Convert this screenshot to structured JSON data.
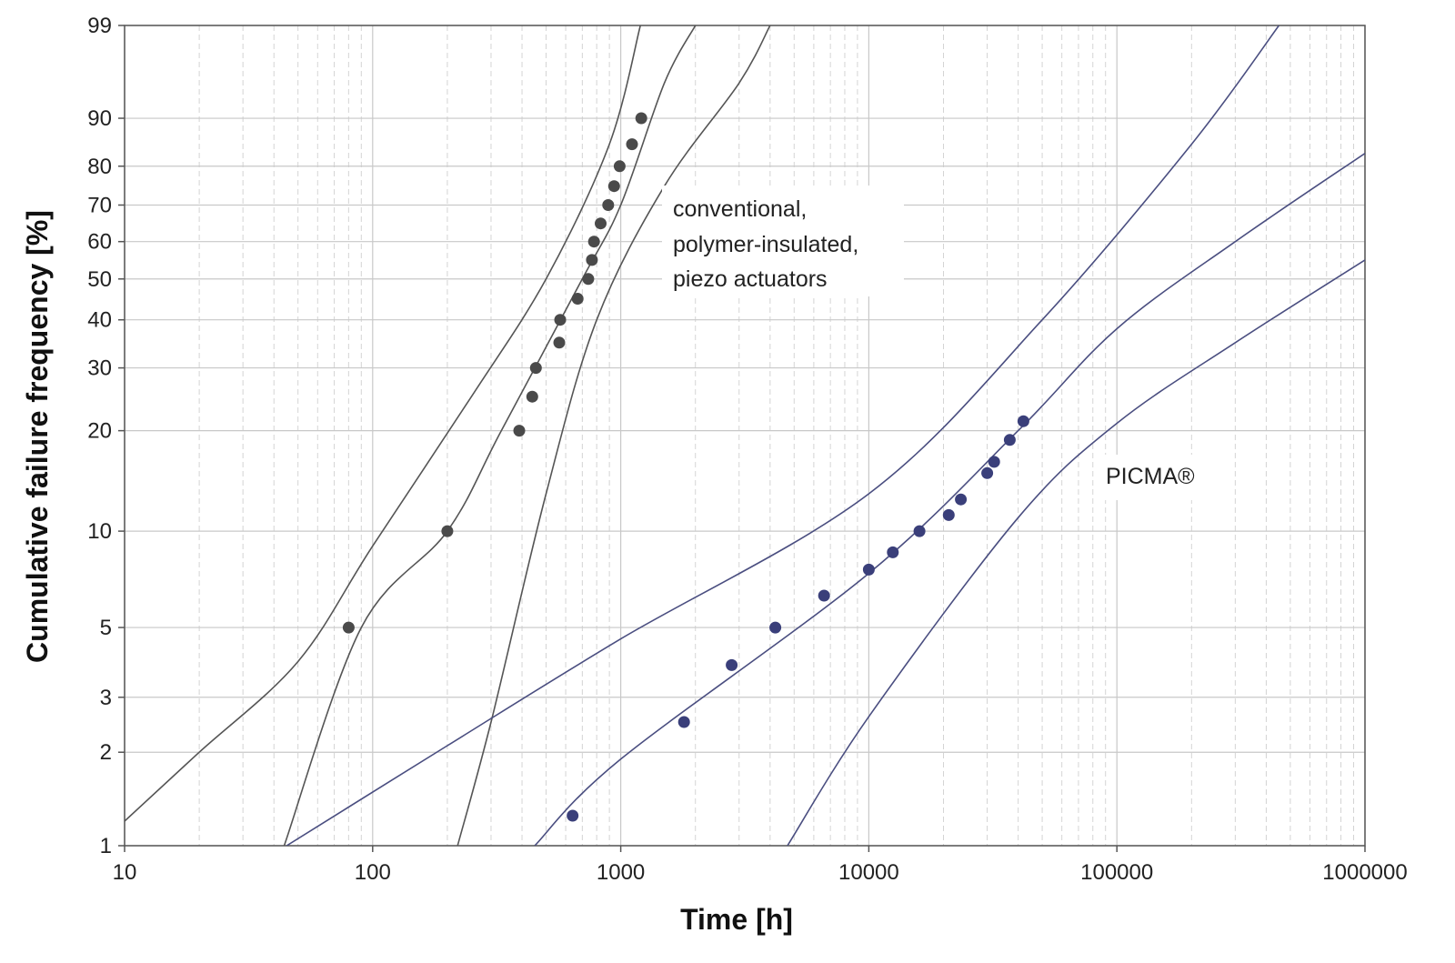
{
  "chart_data": {
    "type": "scatter",
    "xlabel": "Time [h]",
    "ylabel": "Cumulative failure frequency [%]",
    "x_scale": "log",
    "y_scale": "weibull",
    "xlim": [
      10,
      1000000
    ],
    "ylim": [
      1,
      99
    ],
    "x_ticks": [
      10,
      100,
      1000,
      10000,
      100000,
      1000000
    ],
    "x_tick_labels": [
      "10",
      "100",
      "1000",
      "10000",
      "100000",
      "1000000"
    ],
    "y_ticks": [
      1,
      2,
      3,
      5,
      10,
      20,
      30,
      40,
      50,
      60,
      70,
      80,
      90,
      99
    ],
    "y_tick_labels": [
      "1",
      "2",
      "3",
      "5",
      "10",
      "20",
      "30",
      "40",
      "50",
      "60",
      "70",
      "80",
      "90",
      "99"
    ],
    "grid": true,
    "colors": {
      "grid_major": "#c8c8c8",
      "grid_minor": "#d4d4d4",
      "frame": "#555555",
      "conventional_points": "#4a4a4a",
      "conventional_lines": "#555555",
      "picma_points": "#3a3f7a",
      "picma_lines": "#4a4e80"
    },
    "annotations": [
      {
        "id": "conventional",
        "lines": [
          "conventional,",
          "polymer-insulated,",
          "piezo actuators"
        ]
      },
      {
        "id": "picma",
        "lines": [
          "PICMA®"
        ]
      }
    ],
    "series": [
      {
        "group": "conventional",
        "points": [
          {
            "x": 80,
            "y": 5
          },
          {
            "x": 200,
            "y": 10
          },
          {
            "x": 390,
            "y": 20
          },
          {
            "x": 440,
            "y": 25
          },
          {
            "x": 455,
            "y": 30
          },
          {
            "x": 565,
            "y": 35
          },
          {
            "x": 570,
            "y": 40
          },
          {
            "x": 670,
            "y": 45
          },
          {
            "x": 740,
            "y": 50
          },
          {
            "x": 765,
            "y": 55
          },
          {
            "x": 780,
            "y": 60
          },
          {
            "x": 830,
            "y": 65
          },
          {
            "x": 890,
            "y": 70
          },
          {
            "x": 940,
            "y": 75
          },
          {
            "x": 990,
            "y": 80
          },
          {
            "x": 1110,
            "y": 85
          },
          {
            "x": 1210,
            "y": 90
          }
        ],
        "lines": [
          {
            "role": "fit",
            "points": [
              [
                44,
                1
              ],
              [
                90,
                5
              ],
              [
                200,
                10
              ],
              [
                330,
                20
              ],
              [
                700,
                50
              ],
              [
                1000,
                70
              ],
              [
                1500,
                95
              ],
              [
                2000,
                99
              ]
            ]
          },
          {
            "role": "upper-bound",
            "points": [
              [
                10,
                1.2
              ],
              [
                20,
                2
              ],
              [
                50,
                3.9
              ],
              [
                100,
                9
              ],
              [
                250,
                25
              ],
              [
                500,
                50
              ],
              [
                900,
                85
              ],
              [
                1200,
                99
              ]
            ]
          },
          {
            "role": "lower-bound",
            "points": [
              [
                220,
                1
              ],
              [
                300,
                2.5
              ],
              [
                500,
                13
              ],
              [
                800,
                40
              ],
              [
                1500,
                75
              ],
              [
                3000,
                95
              ],
              [
                4000,
                99
              ]
            ]
          }
        ]
      },
      {
        "group": "PICMA®",
        "points": [
          {
            "x": 640,
            "y": 1.25
          },
          {
            "x": 1800,
            "y": 2.5
          },
          {
            "x": 2800,
            "y": 3.8
          },
          {
            "x": 4200,
            "y": 5
          },
          {
            "x": 6600,
            "y": 6.3
          },
          {
            "x": 10000,
            "y": 7.6
          },
          {
            "x": 12500,
            "y": 8.6
          },
          {
            "x": 16000,
            "y": 10
          },
          {
            "x": 21000,
            "y": 11.2
          },
          {
            "x": 23500,
            "y": 12.5
          },
          {
            "x": 30000,
            "y": 15
          },
          {
            "x": 32000,
            "y": 16.2
          },
          {
            "x": 37000,
            "y": 18.8
          },
          {
            "x": 42000,
            "y": 21.3
          }
        ],
        "lines": [
          {
            "role": "fit",
            "points": [
              [
                450,
                1
              ],
              [
                1000,
                1.9
              ],
              [
                10000,
                7.4
              ],
              [
                40000,
                20
              ],
              [
                100000,
                38
              ],
              [
                300000,
                60
              ],
              [
                1000000,
                83
              ]
            ]
          },
          {
            "role": "upper-bound",
            "points": [
              [
                45,
                1
              ],
              [
                200,
                2.1
              ],
              [
                1000,
                4.6
              ],
              [
                10000,
                13
              ],
              [
                50000,
                40
              ],
              [
                200000,
                85
              ],
              [
                450000,
                99
              ]
            ]
          },
          {
            "role": "lower-bound",
            "points": [
              [
                4700,
                1
              ],
              [
                10000,
                2.6
              ],
              [
                40000,
                11
              ],
              [
                100000,
                21
              ],
              [
                300000,
                35
              ],
              [
                1000000,
                55
              ]
            ]
          }
        ]
      }
    ]
  }
}
